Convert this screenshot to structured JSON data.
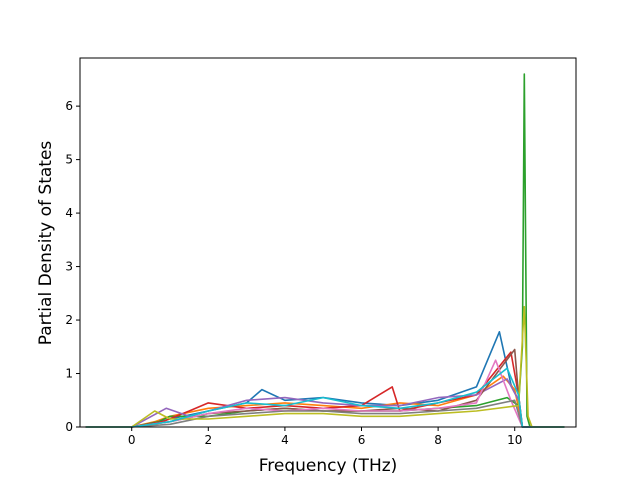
{
  "chart_data": {
    "type": "line",
    "title": "",
    "xlabel": "Frequency (THz)",
    "ylabel": "Partial Density of States",
    "xlim": [
      -1.35,
      11.6
    ],
    "ylim": [
      0,
      6.9
    ],
    "x_ticks": [
      0,
      2,
      4,
      6,
      8,
      10
    ],
    "y_ticks": [
      0,
      1,
      2,
      3,
      4,
      5,
      6
    ],
    "x_tick_labels": [
      "0",
      "2",
      "4",
      "6",
      "8",
      "10"
    ],
    "y_tick_labels": [
      "0",
      "1",
      "2",
      "3",
      "4",
      "5",
      "6"
    ],
    "grid": false,
    "legend": "none",
    "x_range": [
      -1.2,
      11.3
    ],
    "series_count": 10,
    "colors": [
      "#1f77b4",
      "#ff7f0e",
      "#2ca02c",
      "#d62728",
      "#9467bd",
      "#8c564b",
      "#e377c2",
      "#7f7f7f",
      "#bcbd22",
      "#17becf"
    ],
    "series": [
      {
        "color": "#1f77b4",
        "points": [
          [
            -1.2,
            0
          ],
          [
            0,
            0
          ],
          [
            0.5,
            0.05
          ],
          [
            1,
            0.15
          ],
          [
            2,
            0.3
          ],
          [
            3,
            0.45
          ],
          [
            3.4,
            0.7
          ],
          [
            4,
            0.5
          ],
          [
            5,
            0.55
          ],
          [
            6,
            0.45
          ],
          [
            7,
            0.4
          ],
          [
            8,
            0.5
          ],
          [
            9,
            0.75
          ],
          [
            9.6,
            1.78
          ],
          [
            9.9,
            0.8
          ],
          [
            10.1,
            0.5
          ],
          [
            10.2,
            0
          ],
          [
            11.3,
            0
          ]
        ]
      },
      {
        "color": "#ff7f0e",
        "points": [
          [
            -1.2,
            0
          ],
          [
            0,
            0
          ],
          [
            0.6,
            0.1
          ],
          [
            1,
            0.2
          ],
          [
            2,
            0.35
          ],
          [
            3,
            0.4
          ],
          [
            4,
            0.45
          ],
          [
            5,
            0.4
          ],
          [
            6,
            0.35
          ],
          [
            7,
            0.45
          ],
          [
            8,
            0.4
          ],
          [
            9,
            0.6
          ],
          [
            9.7,
            0.95
          ],
          [
            10,
            0.7
          ],
          [
            10.2,
            0
          ],
          [
            11.3,
            0
          ]
        ]
      },
      {
        "color": "#2ca02c",
        "points": [
          [
            -1.2,
            0
          ],
          [
            0,
            0
          ],
          [
            0.7,
            0.1
          ],
          [
            1,
            0.2
          ],
          [
            2,
            0.2
          ],
          [
            3,
            0.3
          ],
          [
            4,
            0.35
          ],
          [
            5,
            0.3
          ],
          [
            6,
            0.3
          ],
          [
            7,
            0.3
          ],
          [
            8,
            0.35
          ],
          [
            9,
            0.4
          ],
          [
            9.8,
            0.55
          ],
          [
            10.1,
            0.4
          ],
          [
            10.2,
            1.5
          ],
          [
            10.25,
            6.6
          ],
          [
            10.32,
            0.2
          ],
          [
            10.4,
            0
          ],
          [
            11.3,
            0
          ]
        ]
      },
      {
        "color": "#d62728",
        "points": [
          [
            -1.2,
            0
          ],
          [
            0,
            0
          ],
          [
            0.8,
            0.1
          ],
          [
            1.5,
            0.3
          ],
          [
            2,
            0.45
          ],
          [
            3,
            0.35
          ],
          [
            4,
            0.4
          ],
          [
            5,
            0.35
          ],
          [
            6,
            0.4
          ],
          [
            6.8,
            0.75
          ],
          [
            7,
            0.3
          ],
          [
            8,
            0.45
          ],
          [
            9,
            0.6
          ],
          [
            9.9,
            1.4
          ],
          [
            10.1,
            0.6
          ],
          [
            10.2,
            0
          ],
          [
            11.3,
            0
          ]
        ]
      },
      {
        "color": "#9467bd",
        "points": [
          [
            -1.2,
            0
          ],
          [
            0,
            0
          ],
          [
            0.9,
            0.35
          ],
          [
            1.5,
            0.2
          ],
          [
            2,
            0.3
          ],
          [
            3,
            0.5
          ],
          [
            4,
            0.55
          ],
          [
            5,
            0.45
          ],
          [
            6,
            0.4
          ],
          [
            7,
            0.4
          ],
          [
            8,
            0.55
          ],
          [
            9,
            0.6
          ],
          [
            9.8,
            0.9
          ],
          [
            10.1,
            0.5
          ],
          [
            10.2,
            0
          ],
          [
            11.3,
            0
          ]
        ]
      },
      {
        "color": "#8c564b",
        "points": [
          [
            -1.2,
            0
          ],
          [
            0,
            0
          ],
          [
            1,
            0.1
          ],
          [
            2,
            0.25
          ],
          [
            3,
            0.3
          ],
          [
            4,
            0.35
          ],
          [
            5,
            0.3
          ],
          [
            6,
            0.3
          ],
          [
            7,
            0.35
          ],
          [
            8,
            0.3
          ],
          [
            9,
            0.5
          ],
          [
            10,
            1.45
          ],
          [
            10.1,
            0.6
          ],
          [
            10.2,
            0
          ],
          [
            11.3,
            0
          ]
        ]
      },
      {
        "color": "#e377c2",
        "points": [
          [
            -1.2,
            0
          ],
          [
            0,
            0
          ],
          [
            1,
            0.1
          ],
          [
            2,
            0.25
          ],
          [
            3,
            0.35
          ],
          [
            4,
            0.3
          ],
          [
            5,
            0.35
          ],
          [
            6,
            0.3
          ],
          [
            7,
            0.3
          ],
          [
            8,
            0.35
          ],
          [
            9,
            0.45
          ],
          [
            9.5,
            1.25
          ],
          [
            9.9,
            0.5
          ],
          [
            10.2,
            0
          ],
          [
            11.3,
            0
          ]
        ]
      },
      {
        "color": "#7f7f7f",
        "points": [
          [
            -1.2,
            0
          ],
          [
            0,
            0
          ],
          [
            1,
            0.05
          ],
          [
            2,
            0.2
          ],
          [
            3,
            0.25
          ],
          [
            4,
            0.3
          ],
          [
            5,
            0.3
          ],
          [
            6,
            0.25
          ],
          [
            7,
            0.25
          ],
          [
            8,
            0.3
          ],
          [
            9,
            0.35
          ],
          [
            10,
            0.5
          ],
          [
            10.2,
            0
          ],
          [
            11.3,
            0
          ]
        ]
      },
      {
        "color": "#bcbd22",
        "points": [
          [
            -1.2,
            0
          ],
          [
            0,
            0
          ],
          [
            0.6,
            0.3
          ],
          [
            1,
            0.15
          ],
          [
            2,
            0.15
          ],
          [
            3,
            0.2
          ],
          [
            4,
            0.25
          ],
          [
            5,
            0.25
          ],
          [
            6,
            0.2
          ],
          [
            7,
            0.2
          ],
          [
            8,
            0.25
          ],
          [
            9,
            0.3
          ],
          [
            10.1,
            0.4
          ],
          [
            10.25,
            2.25
          ],
          [
            10.35,
            0.2
          ],
          [
            10.45,
            0
          ],
          [
            11.3,
            0
          ]
        ]
      },
      {
        "color": "#17becf",
        "points": [
          [
            -1.2,
            0
          ],
          [
            0,
            0
          ],
          [
            1,
            0.1
          ],
          [
            2,
            0.3
          ],
          [
            3,
            0.45
          ],
          [
            4,
            0.4
          ],
          [
            5,
            0.55
          ],
          [
            6,
            0.4
          ],
          [
            7,
            0.35
          ],
          [
            8,
            0.45
          ],
          [
            9,
            0.65
          ],
          [
            9.8,
            1.1
          ],
          [
            10.1,
            0.6
          ],
          [
            10.2,
            0
          ],
          [
            11.3,
            0
          ]
        ]
      }
    ]
  }
}
